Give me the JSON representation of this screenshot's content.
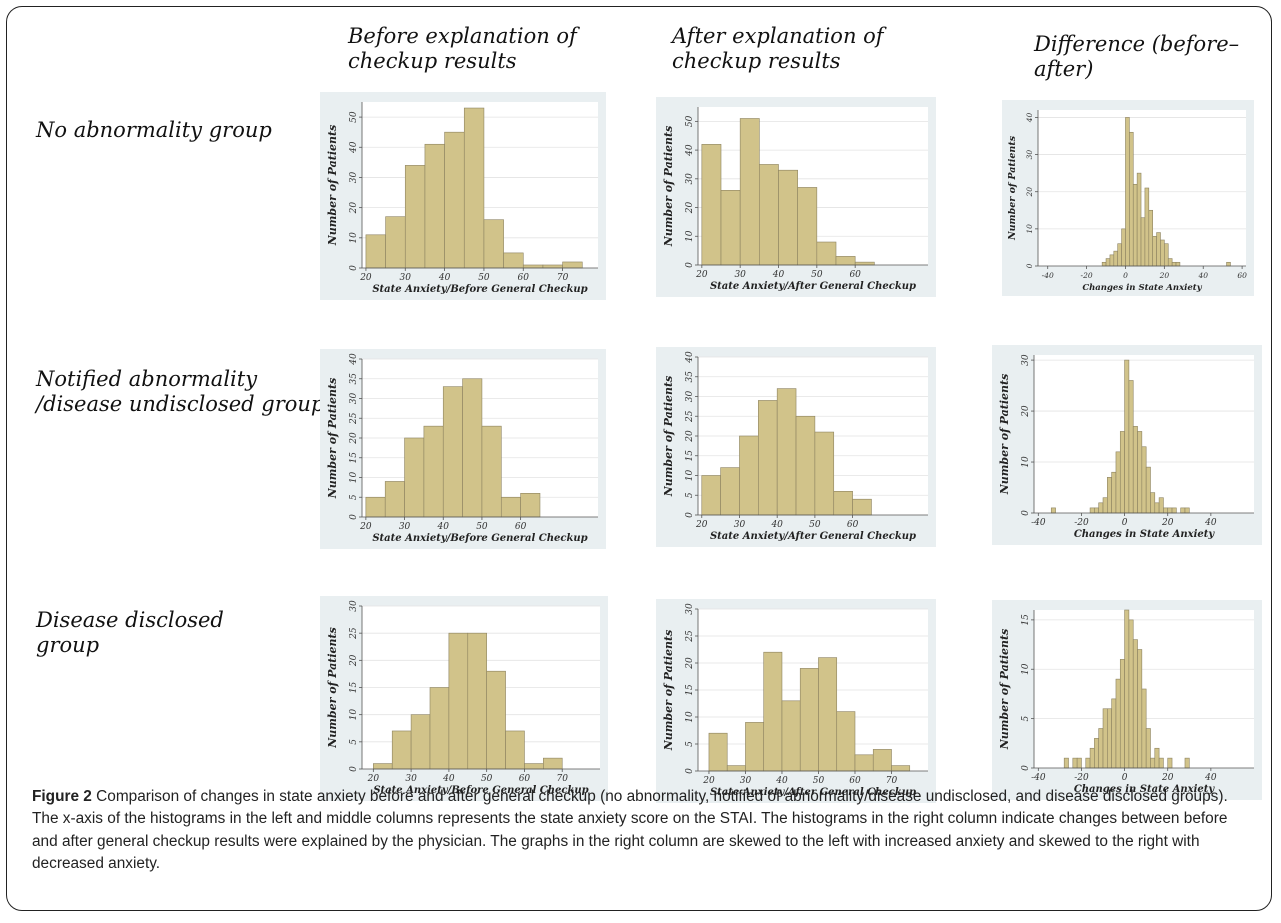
{
  "column_headers": [
    "Before explanation of\ncheckup results",
    "After explanation of\ncheckup results",
    "Difference (before–after)"
  ],
  "row_headers": [
    "No abnormality group",
    "Notified abnormality\n/disease undisclosed group",
    "Disease disclosed\ngroup"
  ],
  "caption": {
    "label": "Figure 2",
    "text": " Comparison of changes in state anxiety before and after general checkup (no abnormality, notified of abnormality/disease undisclosed, and disease disclosed groups). The x-axis of the histograms in the left and middle columns represents the state anxiety score on the STAI. The histograms in the right column indicate changes between before and after general checkup results were explained by the physician. The graphs in the right column are skewed to the left with increased anxiety and skewed to the right with decreased anxiety."
  },
  "colors": {
    "bar_fill": "#d1c38a",
    "bar_edge": "#8c8260",
    "panel_bg": "#e9eff1"
  },
  "chart_data": [
    {
      "type": "bar",
      "title": "",
      "xlabel": "State Anxiety/Before General Checkup",
      "ylabel": "Number of Patients",
      "xlim": [
        19,
        79
      ],
      "ylim": [
        0,
        55
      ],
      "yticks": [
        0,
        10,
        20,
        30,
        40,
        50
      ],
      "xticks": [
        20,
        30,
        40,
        50,
        60,
        70
      ],
      "bin_width": 5,
      "bin_starts": [
        20,
        25,
        30,
        35,
        40,
        45,
        50,
        55,
        60,
        65,
        70
      ],
      "values": [
        11,
        17,
        34,
        41,
        45,
        53,
        16,
        5,
        1,
        1,
        2
      ]
    },
    {
      "type": "bar",
      "title": "",
      "xlabel": "State Anxiety/After General Checkup",
      "ylabel": "Number of Patients",
      "xlim": [
        19,
        79
      ],
      "ylim": [
        0,
        55
      ],
      "yticks": [
        0,
        10,
        20,
        30,
        40,
        50
      ],
      "xticks": [
        20,
        30,
        40,
        50,
        60
      ],
      "bin_width": 5,
      "bin_starts": [
        20,
        25,
        30,
        35,
        40,
        45,
        50,
        55,
        60,
        65
      ],
      "values": [
        42,
        26,
        51,
        35,
        33,
        27,
        8,
        3,
        1,
        0
      ]
    },
    {
      "type": "bar",
      "title": "",
      "xlabel": "Changes in State Anxiety",
      "ylabel": "Number of Patients",
      "xlim": [
        -45,
        62
      ],
      "ylim": [
        0,
        42
      ],
      "yticks": [
        0,
        10,
        20,
        30,
        40
      ],
      "xticks": [
        -40,
        -20,
        0,
        20,
        40,
        60
      ],
      "bin_width": 2,
      "bin_starts": [
        -12,
        -10,
        -8,
        -6,
        -4,
        -2,
        0,
        2,
        4,
        6,
        8,
        10,
        12,
        14,
        16,
        18,
        20,
        22,
        24,
        26,
        52
      ],
      "values": [
        1,
        2,
        3,
        4,
        6,
        10,
        40,
        36,
        22,
        25,
        13,
        21,
        15,
        8,
        9,
        7,
        6,
        2,
        1,
        1,
        1
      ]
    },
    {
      "type": "bar",
      "title": "",
      "xlabel": "State Anxiety/Before General Checkup",
      "ylabel": "Number of Patients",
      "xlim": [
        19,
        80
      ],
      "ylim": [
        0,
        40
      ],
      "yticks": [
        0,
        5,
        10,
        15,
        20,
        25,
        30,
        35,
        40
      ],
      "xticks": [
        20,
        30,
        40,
        50,
        60
      ],
      "bin_width": 5,
      "bin_starts": [
        20,
        25,
        30,
        35,
        40,
        45,
        50,
        55,
        60
      ],
      "values": [
        5,
        9,
        20,
        23,
        33,
        35,
        23,
        5,
        6
      ]
    },
    {
      "type": "bar",
      "title": "",
      "xlabel": "State Anxiety/After General Checkup",
      "ylabel": "Number of Patients",
      "xlim": [
        19,
        80
      ],
      "ylim": [
        0,
        40
      ],
      "yticks": [
        0,
        5,
        10,
        15,
        20,
        25,
        30,
        35,
        40
      ],
      "xticks": [
        20,
        30,
        40,
        50,
        60
      ],
      "bin_width": 5,
      "bin_starts": [
        20,
        25,
        30,
        35,
        40,
        45,
        50,
        55,
        60
      ],
      "values": [
        10,
        12,
        20,
        29,
        32,
        25,
        21,
        6,
        4
      ]
    },
    {
      "type": "bar",
      "title": "",
      "xlabel": "Changes in State Anxiety",
      "ylabel": "Number of Patients",
      "xlim": [
        -42,
        60
      ],
      "ylim": [
        0,
        31
      ],
      "yticks": [
        0,
        10,
        20,
        30
      ],
      "xticks": [
        -40,
        -20,
        0,
        20,
        40
      ],
      "bin_width": 2,
      "bin_starts": [
        -34,
        -16,
        -14,
        -12,
        -10,
        -8,
        -6,
        -4,
        -2,
        0,
        2,
        4,
        6,
        8,
        10,
        12,
        14,
        16,
        18,
        20,
        22,
        26,
        28
      ],
      "values": [
        1,
        1,
        1,
        2,
        3,
        7,
        8,
        12,
        16,
        30,
        26,
        17,
        16,
        13,
        9,
        4,
        2,
        3,
        1,
        1,
        1,
        1,
        1
      ]
    },
    {
      "type": "bar",
      "title": "",
      "xlabel": "State Anxiety/Before General Checkup",
      "ylabel": "Number of Patients",
      "xlim": [
        17,
        80
      ],
      "ylim": [
        0,
        30
      ],
      "yticks": [
        0,
        5,
        10,
        15,
        20,
        25,
        30
      ],
      "xticks": [
        20,
        30,
        40,
        50,
        60,
        70
      ],
      "bin_width": 5,
      "bin_starts": [
        20,
        25,
        30,
        35,
        40,
        45,
        50,
        55,
        60,
        65
      ],
      "values": [
        1,
        7,
        10,
        15,
        25,
        25,
        18,
        7,
        1,
        2
      ]
    },
    {
      "type": "bar",
      "title": "",
      "xlabel": "State Anxiety/After General Checkup",
      "ylabel": "Number of Patients",
      "xlim": [
        17,
        80
      ],
      "ylim": [
        0,
        30
      ],
      "yticks": [
        0,
        5,
        10,
        15,
        20,
        25,
        30
      ],
      "xticks": [
        20,
        30,
        40,
        50,
        60,
        70
      ],
      "bin_width": 5,
      "bin_starts": [
        20,
        25,
        30,
        35,
        40,
        45,
        50,
        55,
        60,
        65,
        70
      ],
      "values": [
        7,
        1,
        9,
        22,
        13,
        19,
        21,
        11,
        3,
        4,
        1
      ]
    },
    {
      "type": "bar",
      "title": "",
      "xlabel": "Changes in State Anxiety",
      "ylabel": "Number of Patients",
      "xlim": [
        -42,
        60
      ],
      "ylim": [
        0,
        16
      ],
      "yticks": [
        0,
        5,
        10,
        15
      ],
      "xticks": [
        -40,
        -20,
        0,
        20,
        40
      ],
      "bin_width": 2,
      "bin_starts": [
        -28,
        -24,
        -22,
        -18,
        -16,
        -14,
        -12,
        -10,
        -8,
        -6,
        -4,
        -2,
        0,
        2,
        4,
        6,
        8,
        10,
        12,
        14,
        16,
        20,
        28
      ],
      "values": [
        1,
        1,
        1,
        1,
        2,
        3,
        4,
        6,
        6,
        7,
        9,
        11,
        16,
        15,
        13,
        12,
        8,
        4,
        1,
        2,
        1,
        1,
        1
      ]
    }
  ]
}
